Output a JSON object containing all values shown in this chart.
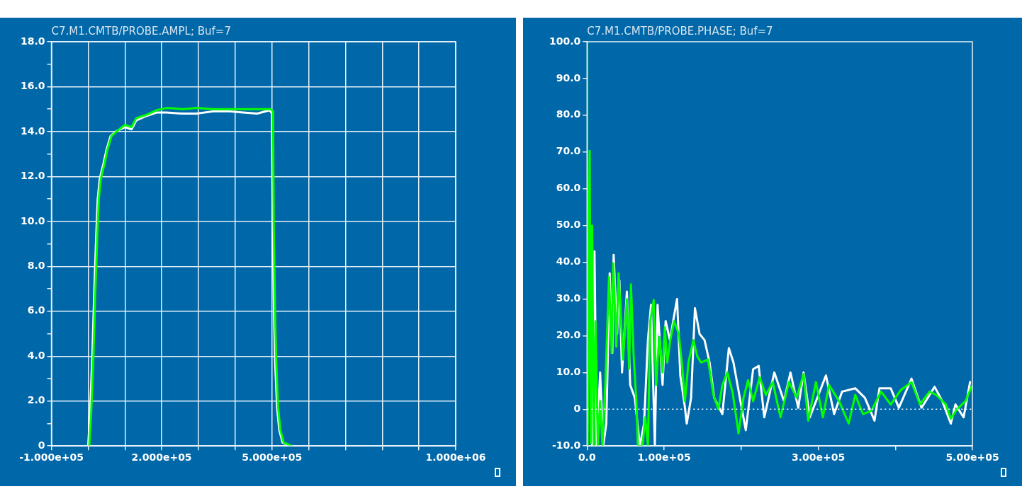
{
  "chart_data": [
    {
      "type": "line",
      "title": "C7.M1.CMTB/PROBE.AMPL; Buf=7",
      "xlim": [
        -100000,
        1000000
      ],
      "xticks": [
        {
          "value": -100000,
          "label": "-1.000e+05"
        },
        {
          "value": 0,
          "label": null
        },
        {
          "value": 100000,
          "label": null
        },
        {
          "value": 200000,
          "label": "2.000e+05"
        },
        {
          "value": 300000,
          "label": null
        },
        {
          "value": 400000,
          "label": null
        },
        {
          "value": 500000,
          "label": "5.000e+05"
        },
        {
          "value": 600000,
          "label": null
        },
        {
          "value": 700000,
          "label": null
        },
        {
          "value": 800000,
          "label": null
        },
        {
          "value": 900000,
          "label": null
        },
        {
          "value": 1000000,
          "label": "1.000e+06"
        }
      ],
      "ylim": [
        0,
        18
      ],
      "yticks": [
        0,
        {
          "value": 1,
          "label": null
        },
        {
          "value": 2,
          "label": "2.0"
        },
        {
          "value": 3,
          "label": null
        },
        {
          "value": 4,
          "label": "4.0"
        },
        {
          "value": 5,
          "label": null
        },
        {
          "value": 6,
          "label": "6.0"
        },
        {
          "value": 7,
          "label": null
        },
        {
          "value": 8,
          "label": "8.0"
        },
        {
          "value": 9,
          "label": null
        },
        {
          "value": 10,
          "label": "10.0"
        },
        {
          "value": 11,
          "label": null
        },
        {
          "value": 12,
          "label": "12.0"
        },
        {
          "value": 13,
          "label": null
        },
        {
          "value": 14,
          "label": "14.0"
        },
        {
          "value": 15,
          "label": null
        },
        {
          "value": 16,
          "label": "16.0"
        },
        {
          "value": 17,
          "label": null
        },
        {
          "value": 18,
          "label": "18.0"
        }
      ],
      "grid": true,
      "marker": "none",
      "line_style": "solid",
      "series": [
        {
          "color": "#ffffff",
          "x": [
            0,
            5000,
            11500,
            16000,
            21500,
            26000,
            31500,
            42000,
            50000,
            61000,
            75000,
            100000,
            118000,
            131000,
            159000,
            186000,
            213000,
            258000,
            295000,
            340000,
            385000,
            422000,
            460000,
            494000,
            500000,
            502000,
            505500,
            509000,
            514000,
            520000,
            529000,
            550000
          ],
          "values": [
            0,
            1.4,
            4.1,
            6.6,
            9.2,
            11.0,
            11.9,
            12.6,
            13.2,
            13.8,
            14.0,
            14.2,
            14.1,
            14.5,
            14.7,
            14.85,
            14.85,
            14.8,
            14.8,
            14.9,
            14.9,
            14.85,
            14.8,
            14.95,
            14.8,
            9.7,
            6.0,
            3.6,
            1.7,
            0.7,
            0.15,
            0
          ]
        },
        {
          "color": "#00ff00",
          "x": [
            3000,
            8000,
            14500,
            19000,
            24500,
            29000,
            34500,
            45000,
            52500,
            63500,
            77000,
            100000,
            118000,
            131000,
            159000,
            186000,
            213000,
            258000,
            295000,
            340000,
            385000,
            422000,
            467000,
            496000,
            503000,
            505000,
            508500,
            512000,
            517000,
            523000,
            532000,
            553000
          ],
          "values": [
            0,
            1.4,
            4.1,
            6.6,
            9.2,
            11.0,
            11.9,
            12.6,
            13.2,
            13.8,
            14.0,
            14.3,
            14.2,
            14.6,
            14.75,
            14.95,
            15.05,
            15.0,
            15.05,
            15.0,
            15.0,
            15.0,
            15.0,
            15.0,
            14.9,
            9.7,
            6.0,
            3.6,
            1.7,
            0.7,
            0.15,
            0
          ]
        }
      ]
    },
    {
      "type": "line",
      "title": "C7.M1.CMTB/PROBE.PHASE; Buf=7",
      "xlim": [
        0,
        500000
      ],
      "xticks": [
        {
          "value": 0,
          "label": "0.0"
        },
        {
          "value": 100000,
          "label": "1.00e+05"
        },
        {
          "value": 200000,
          "label": null
        },
        {
          "value": 300000,
          "label": "3.00e+05"
        },
        {
          "value": 400000,
          "label": null
        },
        {
          "value": 500000,
          "label": "5.00e+05"
        }
      ],
      "ylim": [
        -10,
        100
      ],
      "yticks": [
        {
          "value": -10,
          "label": "-10.0"
        },
        0,
        {
          "value": 10,
          "label": "10.0"
        },
        {
          "value": 20,
          "label": "20.0"
        },
        {
          "value": 30,
          "label": "30.0"
        },
        {
          "value": 40,
          "label": "40.0"
        },
        {
          "value": 50,
          "label": "50.0"
        },
        {
          "value": 60,
          "label": "60.0"
        },
        {
          "value": 70,
          "label": "70.0"
        },
        {
          "value": 80,
          "label": "80.0"
        },
        {
          "value": 90,
          "label": "90.0"
        },
        {
          "value": 100,
          "label": "100.0"
        }
      ],
      "grid": false,
      "marker": "none",
      "line_style": "solid",
      "ref_lines": [
        {
          "axis": "y",
          "value": 0,
          "color": "#ffffff",
          "line_style": "dotted"
        }
      ],
      "series": [
        {
          "color": "#ffffff",
          "x": [
            0,
            4200,
            6700,
            9700,
            12600,
            17000,
            21000,
            25000,
            29400,
            32800,
            34500,
            39000,
            42000,
            45400,
            51700,
            56000,
            62000,
            68500,
            74000,
            79000,
            83000,
            88000,
            91500,
            98000,
            102000,
            107500,
            112600,
            116800,
            121000,
            126500,
            129400,
            135000,
            140000,
            146000,
            152500,
            159000,
            165000,
            175600,
            184000,
            190000,
            199000,
            206000,
            215500,
            222700,
            230000,
            243000,
            255500,
            264000,
            274000,
            281000,
            289000,
            310000,
            320600,
            331000,
            348000,
            360500,
            373000,
            379400,
            394000,
            404600,
            421000,
            434000,
            451000,
            461000,
            472000,
            478000,
            488600,
            497000
          ],
          "values": [
            -10,
            50,
            -10,
            43,
            -10,
            10,
            -10,
            -3.9,
            37,
            15.3,
            42,
            20.5,
            35,
            10,
            32,
            6.6,
            3.1,
            -10,
            -3.9,
            18.8,
            28.4,
            -10,
            28.4,
            6.6,
            24,
            18.8,
            25,
            30,
            9.2,
            1.3,
            -3.9,
            3.1,
            27.5,
            20.5,
            18.8,
            12.7,
            3.1,
            -1.3,
            16.6,
            12.7,
            2.2,
            -5.7,
            10.9,
            11.8,
            -2.2,
            10,
            2.2,
            10,
            0.4,
            10,
            -2.2,
            9.2,
            -1.3,
            4.8,
            5.7,
            3.1,
            -3.1,
            5.7,
            5.7,
            0.4,
            8.3,
            0.4,
            6.1,
            2.2,
            -3.9,
            1.3,
            -2.2,
            7.4
          ]
        },
        {
          "color": "#00ff00",
          "x": [
            0,
            800,
            3400,
            5000,
            6700,
            8800,
            11000,
            14000,
            17000,
            20000,
            24000,
            28500,
            32000,
            34000,
            38000,
            41000,
            46600,
            51700,
            54600,
            57000,
            60500,
            64000,
            66000,
            72000,
            75600,
            79000,
            82000,
            86500,
            89500,
            93700,
            98000,
            101000,
            104000,
            108000,
            113000,
            119000,
            123000,
            127000,
            131500,
            138000,
            143000,
            148000,
            157000,
            164000,
            170500,
            175600,
            182000,
            189000,
            196600,
            203000,
            209000,
            215500,
            224000,
            232000,
            241000,
            251000,
            262000,
            272000,
            281000,
            287000,
            297000,
            306000,
            314000,
            327000,
            339500,
            348000,
            358000,
            369000,
            381500,
            394000,
            407000,
            421000,
            432000,
            444500,
            453000,
            465500,
            472000,
            480000,
            491000,
            499000
          ],
          "values": [
            100,
            -10,
            70.3,
            -9.2,
            50,
            -10,
            24,
            -10,
            2.2,
            -10,
            8.3,
            36,
            15.3,
            39.7,
            17,
            37,
            13.5,
            30,
            11,
            34,
            14.4,
            2.2,
            -10,
            -10,
            -2.2,
            -10,
            24,
            29.7,
            6.6,
            19.7,
            10,
            22.3,
            12.7,
            18.8,
            24,
            20.5,
            12.7,
            2.2,
            12.7,
            18.8,
            14.4,
            12.7,
            13.5,
            3.9,
            0,
            6.6,
            10,
            4.4,
            -6.6,
            3.1,
            7.9,
            2.2,
            8.7,
            3.9,
            7.4,
            -2.2,
            7.4,
            3.1,
            9.6,
            -3.1,
            7.4,
            -2.2,
            6.6,
            2.2,
            -3.9,
            3.9,
            -1.3,
            -0.4,
            4.8,
            1.3,
            5.2,
            7.4,
            1.3,
            4.8,
            3.9,
            1.3,
            -2.6,
            0,
            2.2,
            6.1
          ]
        }
      ]
    }
  ]
}
